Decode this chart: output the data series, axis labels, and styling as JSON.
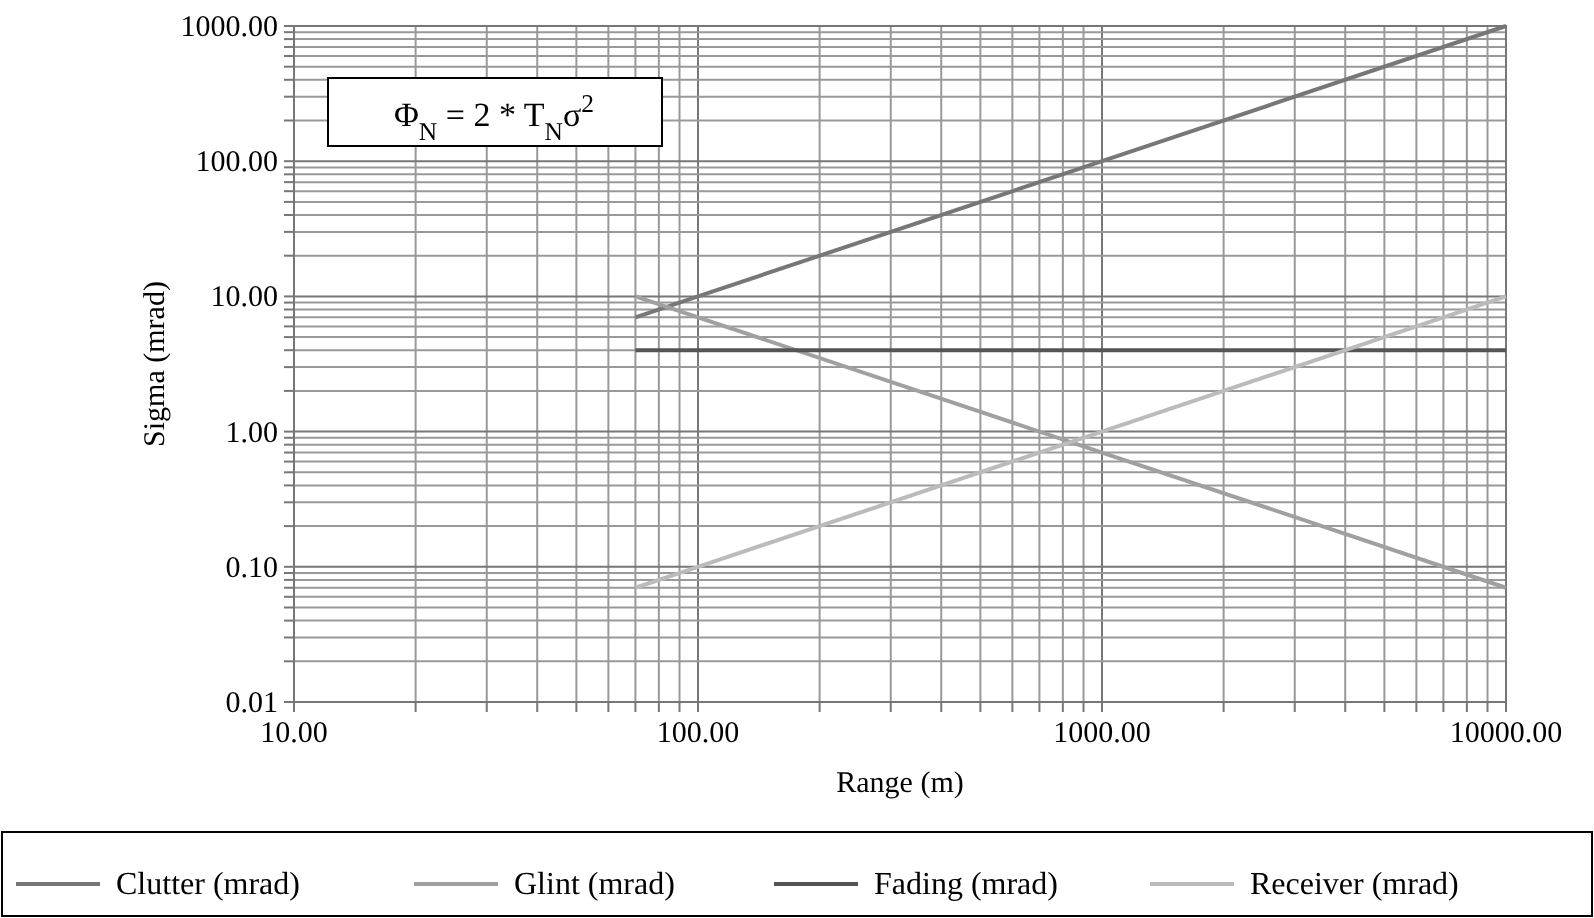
{
  "chart_data": {
    "type": "line",
    "xlabel": "Range (m)",
    "ylabel": "Sigma (mrad)",
    "log": "xy",
    "grid": true,
    "legend": "bottom",
    "marker": "none",
    "line_style": "solid",
    "annotations": [
      "Φ$_{N}$ = 2 * T$_{N}$σ$^{2}$"
    ],
    "xlim": [
      10,
      10000
    ],
    "ylim": [
      0.01,
      1000
    ],
    "xticks": [
      {
        "value": 10,
        "label": "10.00"
      },
      {
        "value": 20,
        "label": null
      },
      {
        "value": 30,
        "label": null
      },
      {
        "value": 40,
        "label": null
      },
      {
        "value": 50,
        "label": null
      },
      {
        "value": 60,
        "label": null
      },
      {
        "value": 70,
        "label": null
      },
      {
        "value": 80,
        "label": null
      },
      {
        "value": 90,
        "label": null
      },
      {
        "value": 100,
        "label": "100.00"
      },
      {
        "value": 200,
        "label": null
      },
      {
        "value": 300,
        "label": null
      },
      {
        "value": 400,
        "label": null
      },
      {
        "value": 500,
        "label": null
      },
      {
        "value": 600,
        "label": null
      },
      {
        "value": 700,
        "label": null
      },
      {
        "value": 800,
        "label": null
      },
      {
        "value": 900,
        "label": null
      },
      {
        "value": 1000,
        "label": "1000.00"
      },
      {
        "value": 2000,
        "label": null
      },
      {
        "value": 3000,
        "label": null
      },
      {
        "value": 4000,
        "label": null
      },
      {
        "value": 5000,
        "label": null
      },
      {
        "value": 6000,
        "label": null
      },
      {
        "value": 7000,
        "label": null
      },
      {
        "value": 8000,
        "label": null
      },
      {
        "value": 9000,
        "label": null
      },
      {
        "value": 10000,
        "label": "10000.00"
      }
    ],
    "yticks": [
      {
        "value": 0.01,
        "label": "0.01"
      },
      {
        "value": 0.02,
        "label": null
      },
      {
        "value": 0.03,
        "label": null
      },
      {
        "value": 0.04,
        "label": null
      },
      {
        "value": 0.05,
        "label": null
      },
      {
        "value": 0.06,
        "label": null
      },
      {
        "value": 0.07,
        "label": null
      },
      {
        "value": 0.08,
        "label": null
      },
      {
        "value": 0.09,
        "label": null
      },
      {
        "value": 0.1,
        "label": "0.10"
      },
      {
        "value": 0.2,
        "label": null
      },
      {
        "value": 0.3,
        "label": null
      },
      {
        "value": 0.4,
        "label": null
      },
      {
        "value": 0.5,
        "label": null
      },
      {
        "value": 0.6,
        "label": null
      },
      {
        "value": 0.7,
        "label": null
      },
      {
        "value": 0.8,
        "label": null
      },
      {
        "value": 0.9,
        "label": null
      },
      {
        "value": 1,
        "label": "1.00"
      },
      {
        "value": 2,
        "label": null
      },
      {
        "value": 3,
        "label": null
      },
      {
        "value": 4,
        "label": null
      },
      {
        "value": 5,
        "label": null
      },
      {
        "value": 6,
        "label": null
      },
      {
        "value": 7,
        "label": null
      },
      {
        "value": 8,
        "label": null
      },
      {
        "value": 9,
        "label": null
      },
      {
        "value": 10,
        "label": "10.00"
      },
      {
        "value": 20,
        "label": null
      },
      {
        "value": 30,
        "label": null
      },
      {
        "value": 40,
        "label": null
      },
      {
        "value": 50,
        "label": null
      },
      {
        "value": 60,
        "label": null
      },
      {
        "value": 70,
        "label": null
      },
      {
        "value": 80,
        "label": null
      },
      {
        "value": 90,
        "label": null
      },
      {
        "value": 100,
        "label": "100.00"
      },
      {
        "value": 200,
        "label": null
      },
      {
        "value": 300,
        "label": null
      },
      {
        "value": 400,
        "label": null
      },
      {
        "value": 500,
        "label": null
      },
      {
        "value": 600,
        "label": null
      },
      {
        "value": 700,
        "label": null
      },
      {
        "value": 800,
        "label": null
      },
      {
        "value": 900,
        "label": null
      },
      {
        "value": 1000,
        "label": "1000.00"
      }
    ],
    "x": [
      70,
      100,
      1000,
      10000
    ],
    "series": [
      {
        "name": "Clutter (mrad)",
        "color": "#777777",
        "values": [
          7,
          10,
          100,
          1000
        ]
      },
      {
        "name": "Glint (mrad)",
        "color": "#a0a0a0",
        "values": [
          10,
          7,
          0.7,
          0.07
        ]
      },
      {
        "name": "Fading (mrad)",
        "color": "#555555",
        "values": [
          4,
          4,
          4,
          4
        ]
      },
      {
        "name": "Receiver (mrad)",
        "color": "#bbbbbb",
        "values": [
          0.07,
          0.1,
          1,
          10
        ]
      }
    ]
  }
}
